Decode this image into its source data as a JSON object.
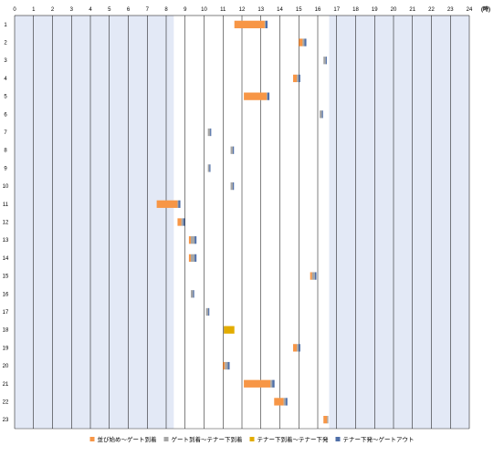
{
  "chart_data": {
    "type": "bar",
    "orientation": "horizontal-stacked-timeline",
    "x_unit_label": "(時)",
    "xlim": [
      0,
      24
    ],
    "x_ticks": [
      "0",
      "1",
      "2",
      "3",
      "4",
      "5",
      "6",
      "7",
      "8",
      "9",
      "10",
      "11",
      "12",
      "13",
      "14",
      "15",
      "16",
      "17",
      "18",
      "19",
      "20",
      "21",
      "22",
      "23",
      "24"
    ],
    "categories": [
      "1",
      "2",
      "3",
      "4",
      "5",
      "6",
      "7",
      "8",
      "9",
      "10",
      "11",
      "12",
      "13",
      "14",
      "15",
      "16",
      "17",
      "18",
      "19",
      "20",
      "21",
      "22",
      "23"
    ],
    "shaded_ranges": [
      [
        0,
        8.4
      ],
      [
        16.6,
        24
      ]
    ],
    "grid": "vertical",
    "legend_position": "bottom",
    "colors": {
      "shade": "#e3e9f6",
      "grid": "#000000",
      "series": [
        "#f79646",
        "#a6a6a6",
        "#e2ac00",
        "#4f6fa8"
      ]
    },
    "series": [
      {
        "name": "並び始め～ゲート到着",
        "start": [
          11.6,
          15.0,
          null,
          14.7,
          12.1,
          null,
          null,
          null,
          null,
          null,
          7.5,
          8.6,
          9.2,
          9.2,
          15.6,
          null,
          null,
          null,
          14.7,
          11.0,
          12.1,
          13.7,
          16.3
        ],
        "values": [
          1.6,
          0.2,
          null,
          0.2,
          1.2,
          null,
          null,
          null,
          null,
          null,
          1.1,
          0.2,
          0.1,
          0.1,
          0.1,
          null,
          null,
          null,
          0.2,
          0.1,
          1.4,
          0.5,
          0.2
        ]
      },
      {
        "name": "ゲート到着～テナー下到着",
        "values": [
          0.05,
          0.1,
          0.12,
          0.1,
          0.05,
          0.12,
          0.12,
          0.12,
          0.08,
          0.12,
          0.05,
          0.1,
          0.2,
          0.2,
          0.15,
          0.12,
          0.12,
          0.05,
          0.1,
          0.15,
          0.1,
          0.1,
          0.05
        ],
        "start": [
          13.2,
          15.2,
          16.3,
          14.9,
          13.3,
          16.1,
          10.2,
          11.4,
          10.2,
          11.4,
          8.6,
          8.8,
          9.3,
          9.3,
          15.7,
          9.3,
          10.1,
          11.0,
          14.9,
          11.1,
          13.5,
          14.2,
          16.5
        ]
      },
      {
        "name": "テナー下到着～テナー下発",
        "values": [
          0.0,
          0.0,
          0.0,
          0.0,
          0.0,
          0.0,
          0.0,
          0.0,
          0.0,
          0.0,
          0.0,
          0.0,
          0.0,
          0.0,
          0.0,
          0.0,
          0.0,
          0.55,
          0.0,
          0.0,
          0.0,
          0.0,
          0.0
        ],
        "start": [
          13.25,
          15.3,
          16.42,
          15.0,
          13.35,
          16.22,
          10.32,
          11.52,
          10.28,
          11.52,
          8.65,
          8.9,
          9.5,
          9.5,
          15.85,
          9.42,
          10.22,
          11.05,
          15.0,
          11.25,
          13.6,
          14.3,
          16.55
        ]
      },
      {
        "name": "テナー下発～ゲートアウト",
        "values": [
          0.1,
          0.1,
          0.03,
          0.08,
          0.1,
          0.02,
          0.02,
          0.02,
          0.02,
          0.03,
          0.1,
          0.08,
          0.1,
          0.1,
          0.08,
          0.03,
          0.02,
          0.0,
          0.08,
          0.1,
          0.12,
          0.1,
          0.0
        ],
        "start": [
          13.25,
          15.3,
          16.42,
          15.0,
          13.35,
          16.22,
          10.32,
          11.52,
          10.28,
          11.52,
          8.65,
          8.9,
          9.5,
          9.5,
          15.85,
          9.42,
          10.22,
          11.6,
          15.0,
          11.25,
          13.6,
          14.3,
          16.55
        ]
      }
    ]
  }
}
